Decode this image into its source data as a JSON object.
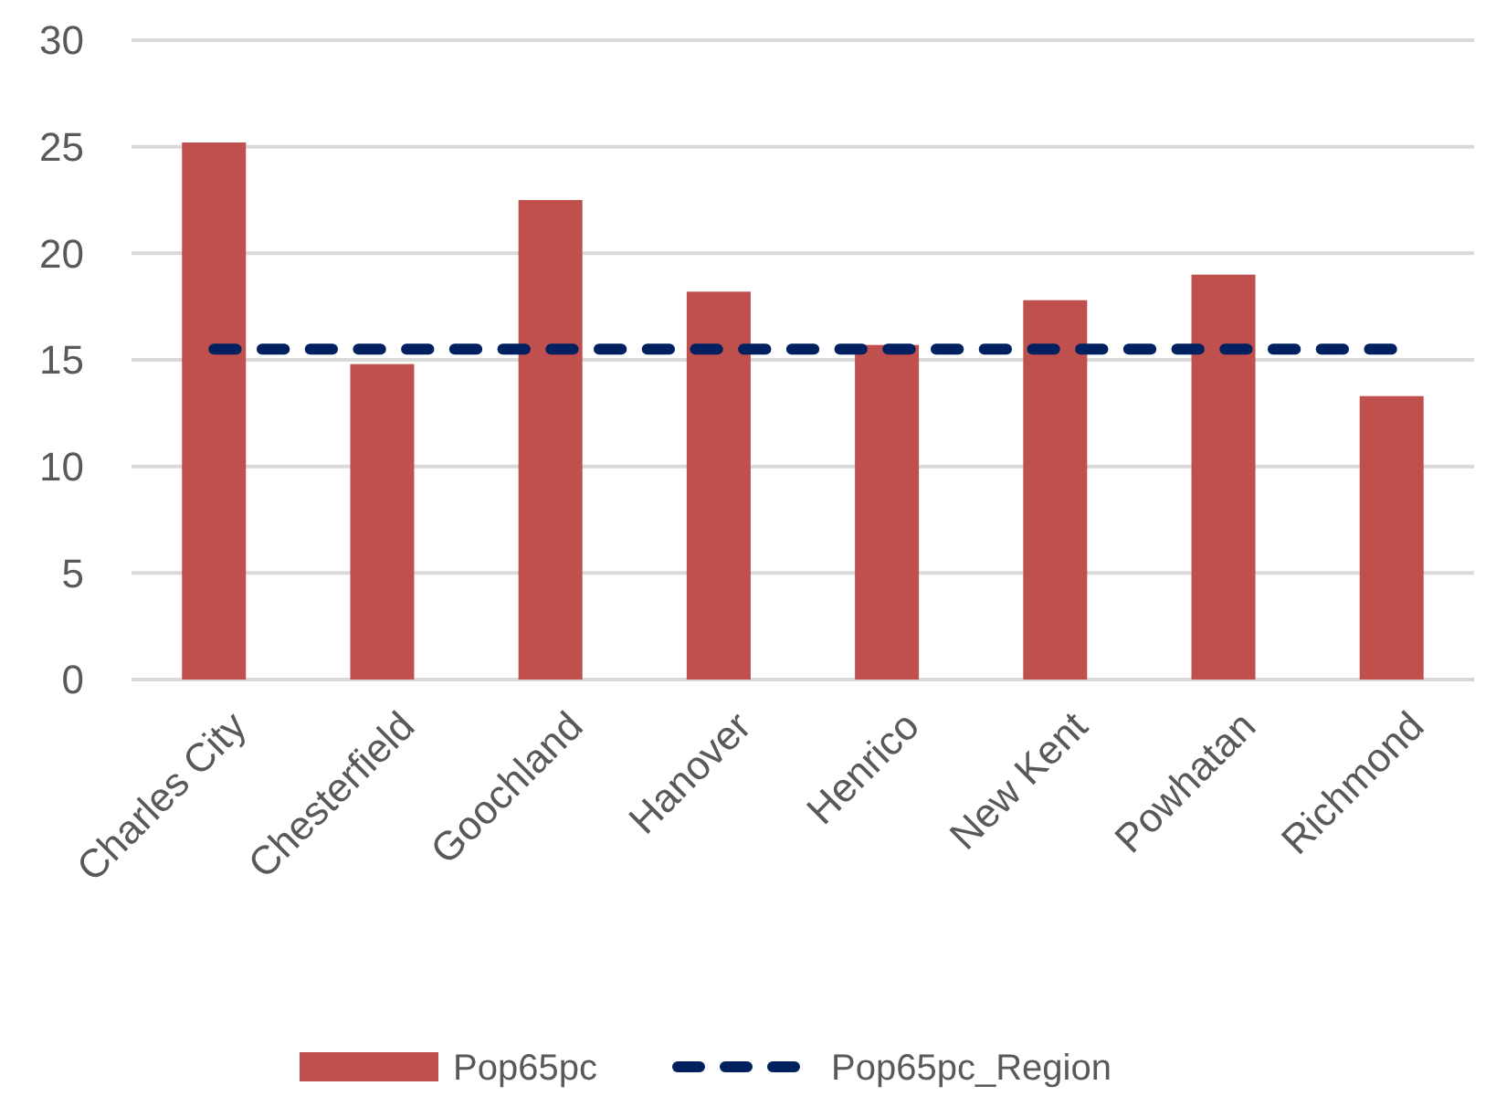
{
  "chart_data": {
    "type": "bar",
    "categories": [
      "Charles City",
      "Chesterfield",
      "Goochland",
      "Hanover",
      "Henrico",
      "New Kent",
      "Powhatan",
      "Richmond"
    ],
    "series": [
      {
        "name": "Pop65pc",
        "color": "#c0504d",
        "values": [
          25.2,
          14.8,
          22.5,
          18.2,
          15.7,
          17.8,
          19.0,
          13.3
        ]
      },
      {
        "name": "Pop65pc_Region",
        "type": "line",
        "color": "#002060",
        "line_style": "dashed",
        "marker": "none",
        "values": [
          15.5,
          15.5,
          15.5,
          15.5,
          15.5,
          15.5,
          15.5,
          15.5
        ]
      }
    ],
    "ylim": [
      0,
      30
    ],
    "yticks": [
      0,
      5,
      10,
      15,
      20,
      25,
      30
    ],
    "grid": "y",
    "legend": "bottom"
  }
}
